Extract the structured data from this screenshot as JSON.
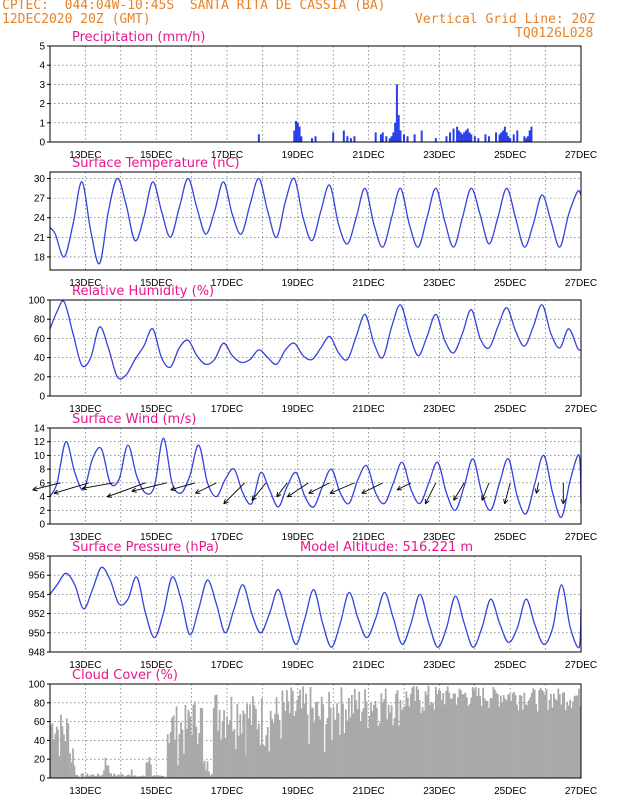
{
  "header": {
    "line1": "CPTEC:  044:04W-10:45S  SANTA RITA DE CASSIA (BA)",
    "date": "12DEC2020 20Z (GMT)",
    "grid": "Vertical Grid Line: 20Z",
    "code": "TQ0126L028"
  },
  "colors": {
    "header": "#e8822a",
    "title": "#e8168c",
    "line": "#3344dd",
    "bar": "#2a3fe8",
    "cloud": "#a9a9a9"
  },
  "x_labels": [
    "13DEC",
    "15DEC",
    "17DEC",
    "19DEC",
    "21DEC",
    "23DEC",
    "25DEC",
    "27DEC"
  ],
  "chart_data": [
    {
      "type": "bar",
      "title": "Precipitation (mm/h)",
      "ylim": [
        0,
        5
      ],
      "yticks": [
        0,
        1,
        2,
        3,
        4,
        5
      ],
      "x_unit": "days since 12DEC2020 20Z",
      "x": [
        5.9,
        6.9,
        6.95,
        7.0,
        7.05,
        7.1,
        7.4,
        7.5,
        8.0,
        8.3,
        8.4,
        8.5,
        8.6,
        9.2,
        9.35,
        9.4,
        9.5,
        9.6,
        9.65,
        9.7,
        9.75,
        9.8,
        9.85,
        9.9,
        10.0,
        10.1,
        10.3,
        10.5,
        10.9,
        11.2,
        11.3,
        11.4,
        11.5,
        11.55,
        11.6,
        11.65,
        11.7,
        11.75,
        11.8,
        11.85,
        11.9,
        12.0,
        12.1,
        12.3,
        12.4,
        12.6,
        12.7,
        12.75,
        12.8,
        12.85,
        12.9,
        12.95,
        13.0,
        13.1,
        13.2,
        13.4,
        13.45,
        13.5,
        13.55,
        13.6
      ],
      "values": [
        0.4,
        0.6,
        1.1,
        1.0,
        0.8,
        0.3,
        0.2,
        0.3,
        0.5,
        0.6,
        0.3,
        0.2,
        0.3,
        0.5,
        0.4,
        0.5,
        0.3,
        0.2,
        0.3,
        0.5,
        1.0,
        3.0,
        1.4,
        0.6,
        0.4,
        0.3,
        0.4,
        0.6,
        0.2,
        0.3,
        0.5,
        0.7,
        0.8,
        0.6,
        0.5,
        0.4,
        0.5,
        0.6,
        0.7,
        0.5,
        0.4,
        0.3,
        0.2,
        0.4,
        0.3,
        0.5,
        0.4,
        0.5,
        0.6,
        0.8,
        0.5,
        0.3,
        0.2,
        0.4,
        0.6,
        0.3,
        0.2,
        0.3,
        0.6,
        0.8
      ]
    },
    {
      "type": "line",
      "title": "Surface Temperature (nC)",
      "ylim": [
        16,
        31
      ],
      "yticks": [
        18,
        21,
        24,
        27,
        30
      ],
      "x_unit": "days since 12DEC2020 20Z",
      "x": [
        0,
        0.15,
        0.4,
        0.65,
        0.9,
        1.15,
        1.4,
        1.65,
        1.9,
        2.15,
        2.4,
        2.65,
        2.9,
        3.15,
        3.4,
        3.65,
        3.9,
        4.15,
        4.4,
        4.65,
        4.9,
        5.15,
        5.4,
        5.65,
        5.9,
        6.15,
        6.4,
        6.65,
        6.9,
        7.15,
        7.4,
        7.65,
        7.9,
        8.15,
        8.4,
        8.65,
        8.9,
        9.15,
        9.4,
        9.65,
        9.9,
        10.15,
        10.4,
        10.65,
        10.9,
        11.15,
        11.4,
        11.65,
        11.9,
        12.15,
        12.4,
        12.65,
        12.9,
        13.15,
        13.4,
        13.65,
        13.9,
        14.15,
        14.4,
        14.65,
        14.9,
        15.0
      ],
      "values": [
        22.5,
        21.5,
        18.0,
        23.0,
        29.5,
        22.0,
        17.0,
        25.0,
        30.0,
        26.0,
        20.5,
        24.0,
        29.5,
        25.0,
        21.0,
        25.5,
        30.0,
        25.5,
        21.5,
        25.0,
        29.5,
        24.5,
        21.5,
        26.0,
        30.0,
        25.0,
        21.0,
        26.5,
        30.0,
        24.0,
        20.5,
        25.0,
        29.0,
        23.0,
        20.0,
        24.0,
        28.5,
        23.0,
        19.5,
        24.0,
        28.5,
        23.0,
        19.5,
        24.0,
        28.5,
        23.5,
        19.5,
        24.0,
        28.5,
        24.5,
        20.0,
        24.0,
        28.5,
        24.0,
        19.5,
        23.0,
        27.5,
        23.5,
        19.5,
        24.5,
        28.0,
        27.5
      ]
    },
    {
      "type": "line",
      "title": "Relative Humidity (%)",
      "ylim": [
        0,
        100
      ],
      "yticks": [
        0,
        20,
        40,
        60,
        80,
        100
      ],
      "x_unit": "days since 12DEC2020 20Z",
      "x": [
        0,
        0.2,
        0.4,
        0.65,
        0.9,
        1.15,
        1.4,
        1.65,
        1.9,
        2.15,
        2.4,
        2.65,
        2.9,
        3.15,
        3.4,
        3.65,
        3.9,
        4.15,
        4.4,
        4.65,
        4.9,
        5.15,
        5.4,
        5.65,
        5.9,
        6.15,
        6.4,
        6.65,
        6.9,
        7.15,
        7.4,
        7.65,
        7.9,
        8.15,
        8.4,
        8.65,
        8.9,
        9.15,
        9.4,
        9.65,
        9.9,
        10.15,
        10.4,
        10.65,
        10.9,
        11.15,
        11.4,
        11.65,
        11.9,
        12.15,
        12.4,
        12.65,
        12.9,
        13.15,
        13.4,
        13.65,
        13.9,
        14.15,
        14.4,
        14.65,
        14.9,
        15.0
      ],
      "values": [
        70,
        88,
        98,
        65,
        32,
        40,
        72,
        50,
        20,
        22,
        38,
        52,
        70,
        40,
        30,
        50,
        58,
        42,
        33,
        38,
        55,
        42,
        35,
        38,
        48,
        40,
        33,
        48,
        55,
        42,
        38,
        50,
        62,
        45,
        38,
        62,
        85,
        55,
        40,
        72,
        95,
        65,
        42,
        62,
        85,
        58,
        45,
        65,
        90,
        60,
        50,
        72,
        92,
        68,
        52,
        72,
        95,
        65,
        50,
        70,
        50,
        48
      ]
    },
    {
      "type": "line",
      "title": "Surface Wind (m/s)",
      "ylim": [
        0,
        14
      ],
      "yticks": [
        0,
        2,
        4,
        6,
        8,
        10,
        12,
        14
      ],
      "x_unit": "days since 12DEC2020 20Z",
      "x": [
        0,
        0.2,
        0.45,
        0.7,
        0.95,
        1.2,
        1.45,
        1.7,
        1.95,
        2.2,
        2.45,
        2.7,
        2.95,
        3.2,
        3.45,
        3.7,
        3.95,
        4.2,
        4.45,
        4.7,
        4.95,
        5.2,
        5.45,
        5.7,
        5.95,
        6.2,
        6.45,
        6.7,
        6.95,
        7.2,
        7.45,
        7.7,
        7.95,
        8.2,
        8.45,
        8.7,
        8.95,
        9.2,
        9.45,
        9.7,
        9.95,
        10.2,
        10.45,
        10.7,
        10.95,
        11.2,
        11.45,
        11.7,
        11.95,
        12.2,
        12.45,
        12.7,
        12.95,
        13.2,
        13.45,
        13.7,
        13.95,
        14.2,
        14.45,
        14.7,
        14.95,
        15.0
      ],
      "values": [
        4.0,
        6.0,
        12.0,
        7.5,
        5.0,
        9.5,
        11.0,
        6.0,
        6.5,
        11.5,
        7.0,
        4.5,
        5.5,
        12.5,
        6.0,
        4.5,
        7.0,
        11.5,
        6.0,
        4.0,
        6.5,
        8.0,
        4.5,
        3.0,
        7.5,
        5.0,
        2.5,
        5.5,
        7.5,
        4.0,
        2.5,
        5.5,
        8.0,
        4.5,
        3.0,
        6.5,
        8.5,
        4.5,
        3.0,
        6.0,
        9.0,
        5.0,
        3.0,
        6.0,
        9.0,
        4.5,
        2.0,
        5.5,
        9.5,
        4.5,
        2.0,
        6.0,
        9.5,
        4.0,
        1.5,
        6.0,
        10.0,
        4.5,
        1.0,
        6.5,
        10.0,
        3.0
      ],
      "arrows": [
        {
          "x": 0.3,
          "u": 4.0,
          "v": -1.0
        },
        {
          "x": 1.1,
          "u": 5.0,
          "v": -1.5
        },
        {
          "x": 1.8,
          "u": 4.5,
          "v": -0.8
        },
        {
          "x": 2.7,
          "u": 5.5,
          "v": -2.0
        },
        {
          "x": 3.3,
          "u": 5.0,
          "v": -1.2
        },
        {
          "x": 4.1,
          "u": 3.5,
          "v": -1.0
        },
        {
          "x": 4.7,
          "u": 3.0,
          "v": -1.5
        },
        {
          "x": 5.5,
          "u": 3.0,
          "v": -3.0
        },
        {
          "x": 6.1,
          "u": 2.0,
          "v": -2.5
        },
        {
          "x": 6.7,
          "u": 1.5,
          "v": -2.0
        },
        {
          "x": 7.3,
          "u": 3.0,
          "v": -2.0
        },
        {
          "x": 7.9,
          "u": 3.0,
          "v": -1.5
        },
        {
          "x": 8.6,
          "u": 3.5,
          "v": -1.5
        },
        {
          "x": 9.4,
          "u": 3.0,
          "v": -1.5
        },
        {
          "x": 10.2,
          "u": 2.0,
          "v": -1.0
        },
        {
          "x": 10.9,
          "u": 1.5,
          "v": -3.0
        },
        {
          "x": 11.7,
          "u": 1.5,
          "v": -2.5
        },
        {
          "x": 12.4,
          "u": 1.0,
          "v": -2.5
        },
        {
          "x": 13.0,
          "u": 0.8,
          "v": -3.0
        },
        {
          "x": 13.8,
          "u": 0.3,
          "v": -1.5
        },
        {
          "x": 14.5,
          "u": 0.0,
          "v": -3.0
        }
      ]
    },
    {
      "type": "line",
      "title": "Surface Pressure (hPa)",
      "subtitle": "Model Altitude: 516.221 m",
      "ylim": [
        948,
        958
      ],
      "yticks": [
        948,
        950,
        952,
        954,
        956,
        958
      ],
      "x_unit": "days since 12DEC2020 20Z",
      "x": [
        0,
        0.2,
        0.45,
        0.7,
        0.95,
        1.2,
        1.45,
        1.7,
        1.95,
        2.2,
        2.45,
        2.7,
        2.95,
        3.2,
        3.45,
        3.7,
        3.95,
        4.2,
        4.45,
        4.7,
        4.95,
        5.2,
        5.45,
        5.7,
        5.95,
        6.2,
        6.45,
        6.7,
        6.95,
        7.2,
        7.45,
        7.7,
        7.95,
        8.2,
        8.45,
        8.7,
        8.95,
        9.2,
        9.45,
        9.7,
        9.95,
        10.2,
        10.45,
        10.7,
        10.95,
        11.2,
        11.45,
        11.7,
        11.95,
        12.2,
        12.45,
        12.7,
        12.95,
        13.2,
        13.45,
        13.7,
        13.95,
        14.2,
        14.45,
        14.7,
        14.95,
        15.0
      ],
      "values": [
        954.0,
        955.0,
        956.2,
        955.0,
        952.5,
        954.5,
        956.8,
        955.5,
        953.0,
        953.5,
        955.8,
        952.0,
        949.5,
        952.0,
        955.8,
        953.5,
        949.8,
        952.5,
        955.5,
        953.0,
        950.0,
        952.5,
        955.0,
        952.0,
        950.0,
        952.0,
        954.5,
        951.5,
        948.8,
        951.5,
        954.5,
        951.0,
        948.5,
        951.0,
        954.2,
        951.5,
        949.5,
        951.5,
        954.2,
        951.5,
        948.8,
        951.0,
        954.0,
        951.0,
        948.5,
        950.5,
        953.8,
        951.0,
        948.5,
        950.5,
        953.5,
        951.0,
        949.0,
        950.5,
        953.5,
        950.8,
        948.8,
        950.5,
        955.0,
        950.5,
        948.5,
        952.5
      ]
    },
    {
      "type": "bar",
      "title": "Cloud Cover (%)",
      "ylim": [
        0,
        100
      ],
      "yticks": [
        0,
        20,
        40,
        60,
        80,
        100
      ],
      "x_unit": "days since 12DEC2020 20Z",
      "step": 0.0417,
      "segments": [
        {
          "from": 0.0,
          "to": 0.2,
          "min": 30,
          "max": 70
        },
        {
          "from": 0.2,
          "to": 0.5,
          "min": 10,
          "max": 72
        },
        {
          "from": 0.5,
          "to": 0.7,
          "min": 0,
          "max": 40
        },
        {
          "from": 0.7,
          "to": 1.5,
          "min": 0,
          "max": 5
        },
        {
          "from": 1.5,
          "to": 1.7,
          "min": 0,
          "max": 25
        },
        {
          "from": 1.7,
          "to": 2.2,
          "min": 0,
          "max": 5
        },
        {
          "from": 2.2,
          "to": 2.3,
          "min": 0,
          "max": 15
        },
        {
          "from": 2.3,
          "to": 2.7,
          "min": 0,
          "max": 3
        },
        {
          "from": 2.7,
          "to": 2.85,
          "min": 10,
          "max": 25
        },
        {
          "from": 2.85,
          "to": 3.3,
          "min": 0,
          "max": 3
        },
        {
          "from": 3.3,
          "to": 3.9,
          "min": 10,
          "max": 78
        },
        {
          "from": 3.9,
          "to": 4.3,
          "min": 30,
          "max": 85
        },
        {
          "from": 4.3,
          "to": 4.6,
          "min": 0,
          "max": 20
        },
        {
          "from": 4.6,
          "to": 5.5,
          "min": 30,
          "max": 95
        },
        {
          "from": 5.5,
          "to": 6.5,
          "min": 20,
          "max": 90
        },
        {
          "from": 6.5,
          "to": 7.4,
          "min": 20,
          "max": 98
        },
        {
          "from": 7.4,
          "to": 8.0,
          "min": 15,
          "max": 92
        },
        {
          "from": 8.0,
          "to": 9.0,
          "min": 40,
          "max": 98
        },
        {
          "from": 9.0,
          "to": 10.0,
          "min": 50,
          "max": 98
        },
        {
          "from": 10.0,
          "to": 11.0,
          "min": 60,
          "max": 99
        },
        {
          "from": 11.0,
          "to": 12.5,
          "min": 70,
          "max": 98
        },
        {
          "from": 12.5,
          "to": 13.5,
          "min": 72,
          "max": 97
        },
        {
          "from": 13.5,
          "to": 15.0,
          "min": 70,
          "max": 96
        }
      ]
    }
  ]
}
